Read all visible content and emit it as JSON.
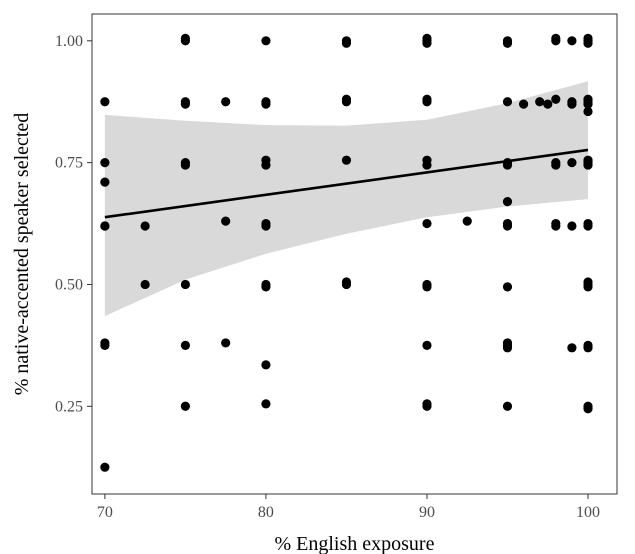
{
  "chart_data": {
    "type": "scatter",
    "xlabel": "% English exposure",
    "ylabel": "% native-accented speaker selected",
    "xlim": [
      69.2,
      101.8
    ],
    "ylim": [
      0.07,
      1.055
    ],
    "x_ticks": [
      70,
      80,
      90,
      100
    ],
    "x_tick_labels": [
      "70",
      "80",
      "90",
      "100"
    ],
    "y_ticks": [
      0.25,
      0.5,
      0.75,
      1.0
    ],
    "y_tick_labels": [
      "0.25",
      "0.50",
      "0.75",
      "1.00"
    ],
    "grid": false,
    "legend": "none",
    "points": [
      [
        70,
        0.875
      ],
      [
        70,
        0.75
      ],
      [
        70,
        0.71
      ],
      [
        70,
        0.62
      ],
      [
        70,
        0.62
      ],
      [
        70,
        0.375
      ],
      [
        70,
        0.38
      ],
      [
        70,
        0.125
      ],
      [
        72.5,
        0.62
      ],
      [
        72.5,
        0.5
      ],
      [
        75,
        1.0
      ],
      [
        75,
        1.005
      ],
      [
        75,
        0.875
      ],
      [
        75,
        0.87
      ],
      [
        75,
        0.75
      ],
      [
        75,
        0.745
      ],
      [
        75,
        0.5
      ],
      [
        75,
        0.375
      ],
      [
        75,
        0.25
      ],
      [
        77.5,
        0.875
      ],
      [
        77.5,
        0.63
      ],
      [
        77.5,
        0.38
      ],
      [
        80,
        1.0
      ],
      [
        80,
        0.875
      ],
      [
        80,
        0.87
      ],
      [
        80,
        0.755
      ],
      [
        80,
        0.745
      ],
      [
        80,
        0.625
      ],
      [
        80,
        0.62
      ],
      [
        80,
        0.5
      ],
      [
        80,
        0.495
      ],
      [
        80,
        0.335
      ],
      [
        80,
        0.255
      ],
      [
        85,
        1.0
      ],
      [
        85,
        0.995
      ],
      [
        85,
        0.88
      ],
      [
        85,
        0.875
      ],
      [
        85,
        0.755
      ],
      [
        85,
        0.505
      ],
      [
        85,
        0.5
      ],
      [
        90,
        1.0
      ],
      [
        90,
        1.005
      ],
      [
        90,
        0.995
      ],
      [
        90,
        0.88
      ],
      [
        90,
        0.875
      ],
      [
        90,
        0.755
      ],
      [
        90,
        0.745
      ],
      [
        90,
        0.625
      ],
      [
        90,
        0.5
      ],
      [
        90,
        0.495
      ],
      [
        90,
        0.375
      ],
      [
        90,
        0.255
      ],
      [
        90,
        0.25
      ],
      [
        92.5,
        0.63
      ],
      [
        95,
        1.0
      ],
      [
        95,
        0.995
      ],
      [
        95,
        0.875
      ],
      [
        95,
        0.75
      ],
      [
        95,
        0.745
      ],
      [
        95,
        0.67
      ],
      [
        95,
        0.625
      ],
      [
        95,
        0.62
      ],
      [
        95,
        0.495
      ],
      [
        95,
        0.38
      ],
      [
        95,
        0.375
      ],
      [
        95,
        0.37
      ],
      [
        95,
        0.25
      ],
      [
        96,
        0.87
      ],
      [
        97,
        0.875
      ],
      [
        97.5,
        0.87
      ],
      [
        98,
        1.0
      ],
      [
        98,
        1.005
      ],
      [
        98,
        0.88
      ],
      [
        98,
        0.75
      ],
      [
        98,
        0.745
      ],
      [
        98,
        0.625
      ],
      [
        98,
        0.62
      ],
      [
        99,
        1.0
      ],
      [
        99,
        0.875
      ],
      [
        99,
        0.87
      ],
      [
        99,
        0.75
      ],
      [
        99,
        0.62
      ],
      [
        99,
        0.37
      ],
      [
        100,
        1.005
      ],
      [
        100,
        1.0
      ],
      [
        100,
        0.995
      ],
      [
        100,
        0.88
      ],
      [
        100,
        0.875
      ],
      [
        100,
        0.87
      ],
      [
        100,
        0.855
      ],
      [
        100,
        0.755
      ],
      [
        100,
        0.75
      ],
      [
        100,
        0.745
      ],
      [
        100,
        0.625
      ],
      [
        100,
        0.62
      ],
      [
        100,
        0.505
      ],
      [
        100,
        0.5
      ],
      [
        100,
        0.495
      ],
      [
        100,
        0.375
      ],
      [
        100,
        0.37
      ],
      [
        100,
        0.25
      ],
      [
        100,
        0.245
      ]
    ],
    "fit_line": {
      "x": [
        70,
        100
      ],
      "y": [
        0.638,
        0.776
      ]
    },
    "confidence_band": {
      "x": [
        70,
        75,
        80,
        85,
        90,
        95,
        100
      ],
      "upper": [
        0.848,
        0.836,
        0.827,
        0.826,
        0.838,
        0.872,
        0.917
      ],
      "lower": [
        0.435,
        0.51,
        0.563,
        0.604,
        0.638,
        0.66,
        0.675
      ]
    },
    "colors": {
      "points": "#000000",
      "fit_line": "#000000",
      "band": "#d9d9d9",
      "panel_border": "#333333",
      "tick_text": "#4d4d4d"
    }
  }
}
